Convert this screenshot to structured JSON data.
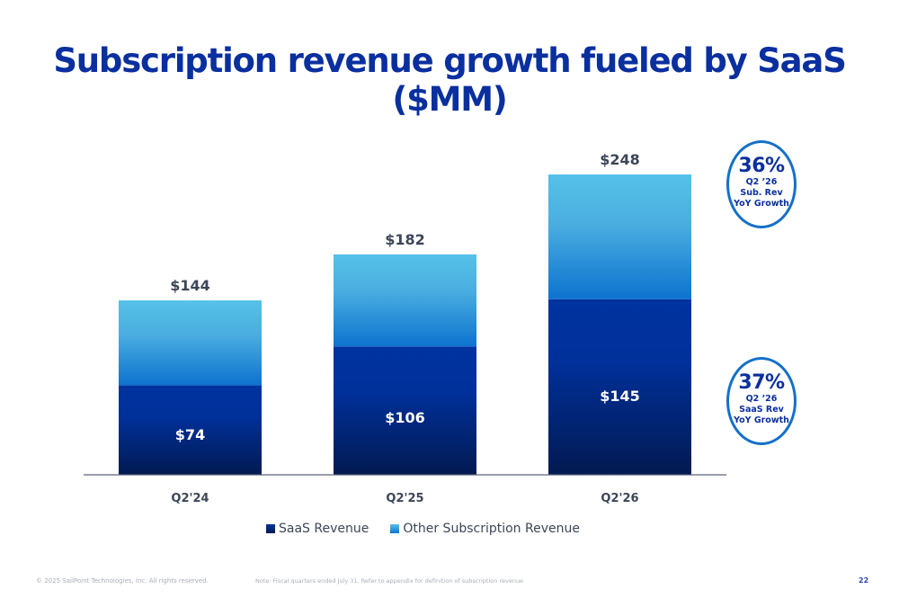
{
  "slide": {
    "title": "Subscription revenue growth fueled by SaaS ($MM)",
    "page_number": "22",
    "copyright": "© 2025 SailPoint Technologies, Inc. All rights reserved.",
    "note": "Note: Fiscal quarters ended July 31.  Refer to appendix for definition of subscription revenue"
  },
  "callouts": [
    {
      "pct": "36%",
      "lines": [
        "Q2 ’26",
        "Sub. Rev",
        "YoY Growth"
      ]
    },
    {
      "pct": "37%",
      "lines": [
        "Q2 ’26",
        "SaaS Rev",
        "YoY Growth"
      ]
    }
  ],
  "colors": {
    "title": "#0a2f9f",
    "saas_top": "#0033a0",
    "saas_bottom": "#021a52",
    "other_top": "#55c1e8",
    "other_bottom": "#0d73cf",
    "callout_border": "#1570c8",
    "axis": "#5a6577",
    "label": "#3c4658"
  },
  "chart_data": {
    "type": "bar",
    "stacked": true,
    "title": "Subscription revenue growth fueled by SaaS ($MM)",
    "xlabel": "",
    "ylabel": "",
    "categories": [
      "Q2'24",
      "Q2'25",
      "Q2'26"
    ],
    "series": [
      {
        "name": "SaaS Revenue",
        "values": [
          74,
          106,
          145
        ],
        "labels": [
          "$74",
          "$106",
          "$145"
        ]
      },
      {
        "name": "Other Subscription Revenue",
        "values": [
          70,
          76,
          103
        ]
      }
    ],
    "totals": [
      144,
      182,
      248
    ],
    "total_labels": [
      "$144",
      "$182",
      "$248"
    ],
    "ylim": [
      0,
      250
    ],
    "grid": false,
    "legend": "bottom-center"
  }
}
